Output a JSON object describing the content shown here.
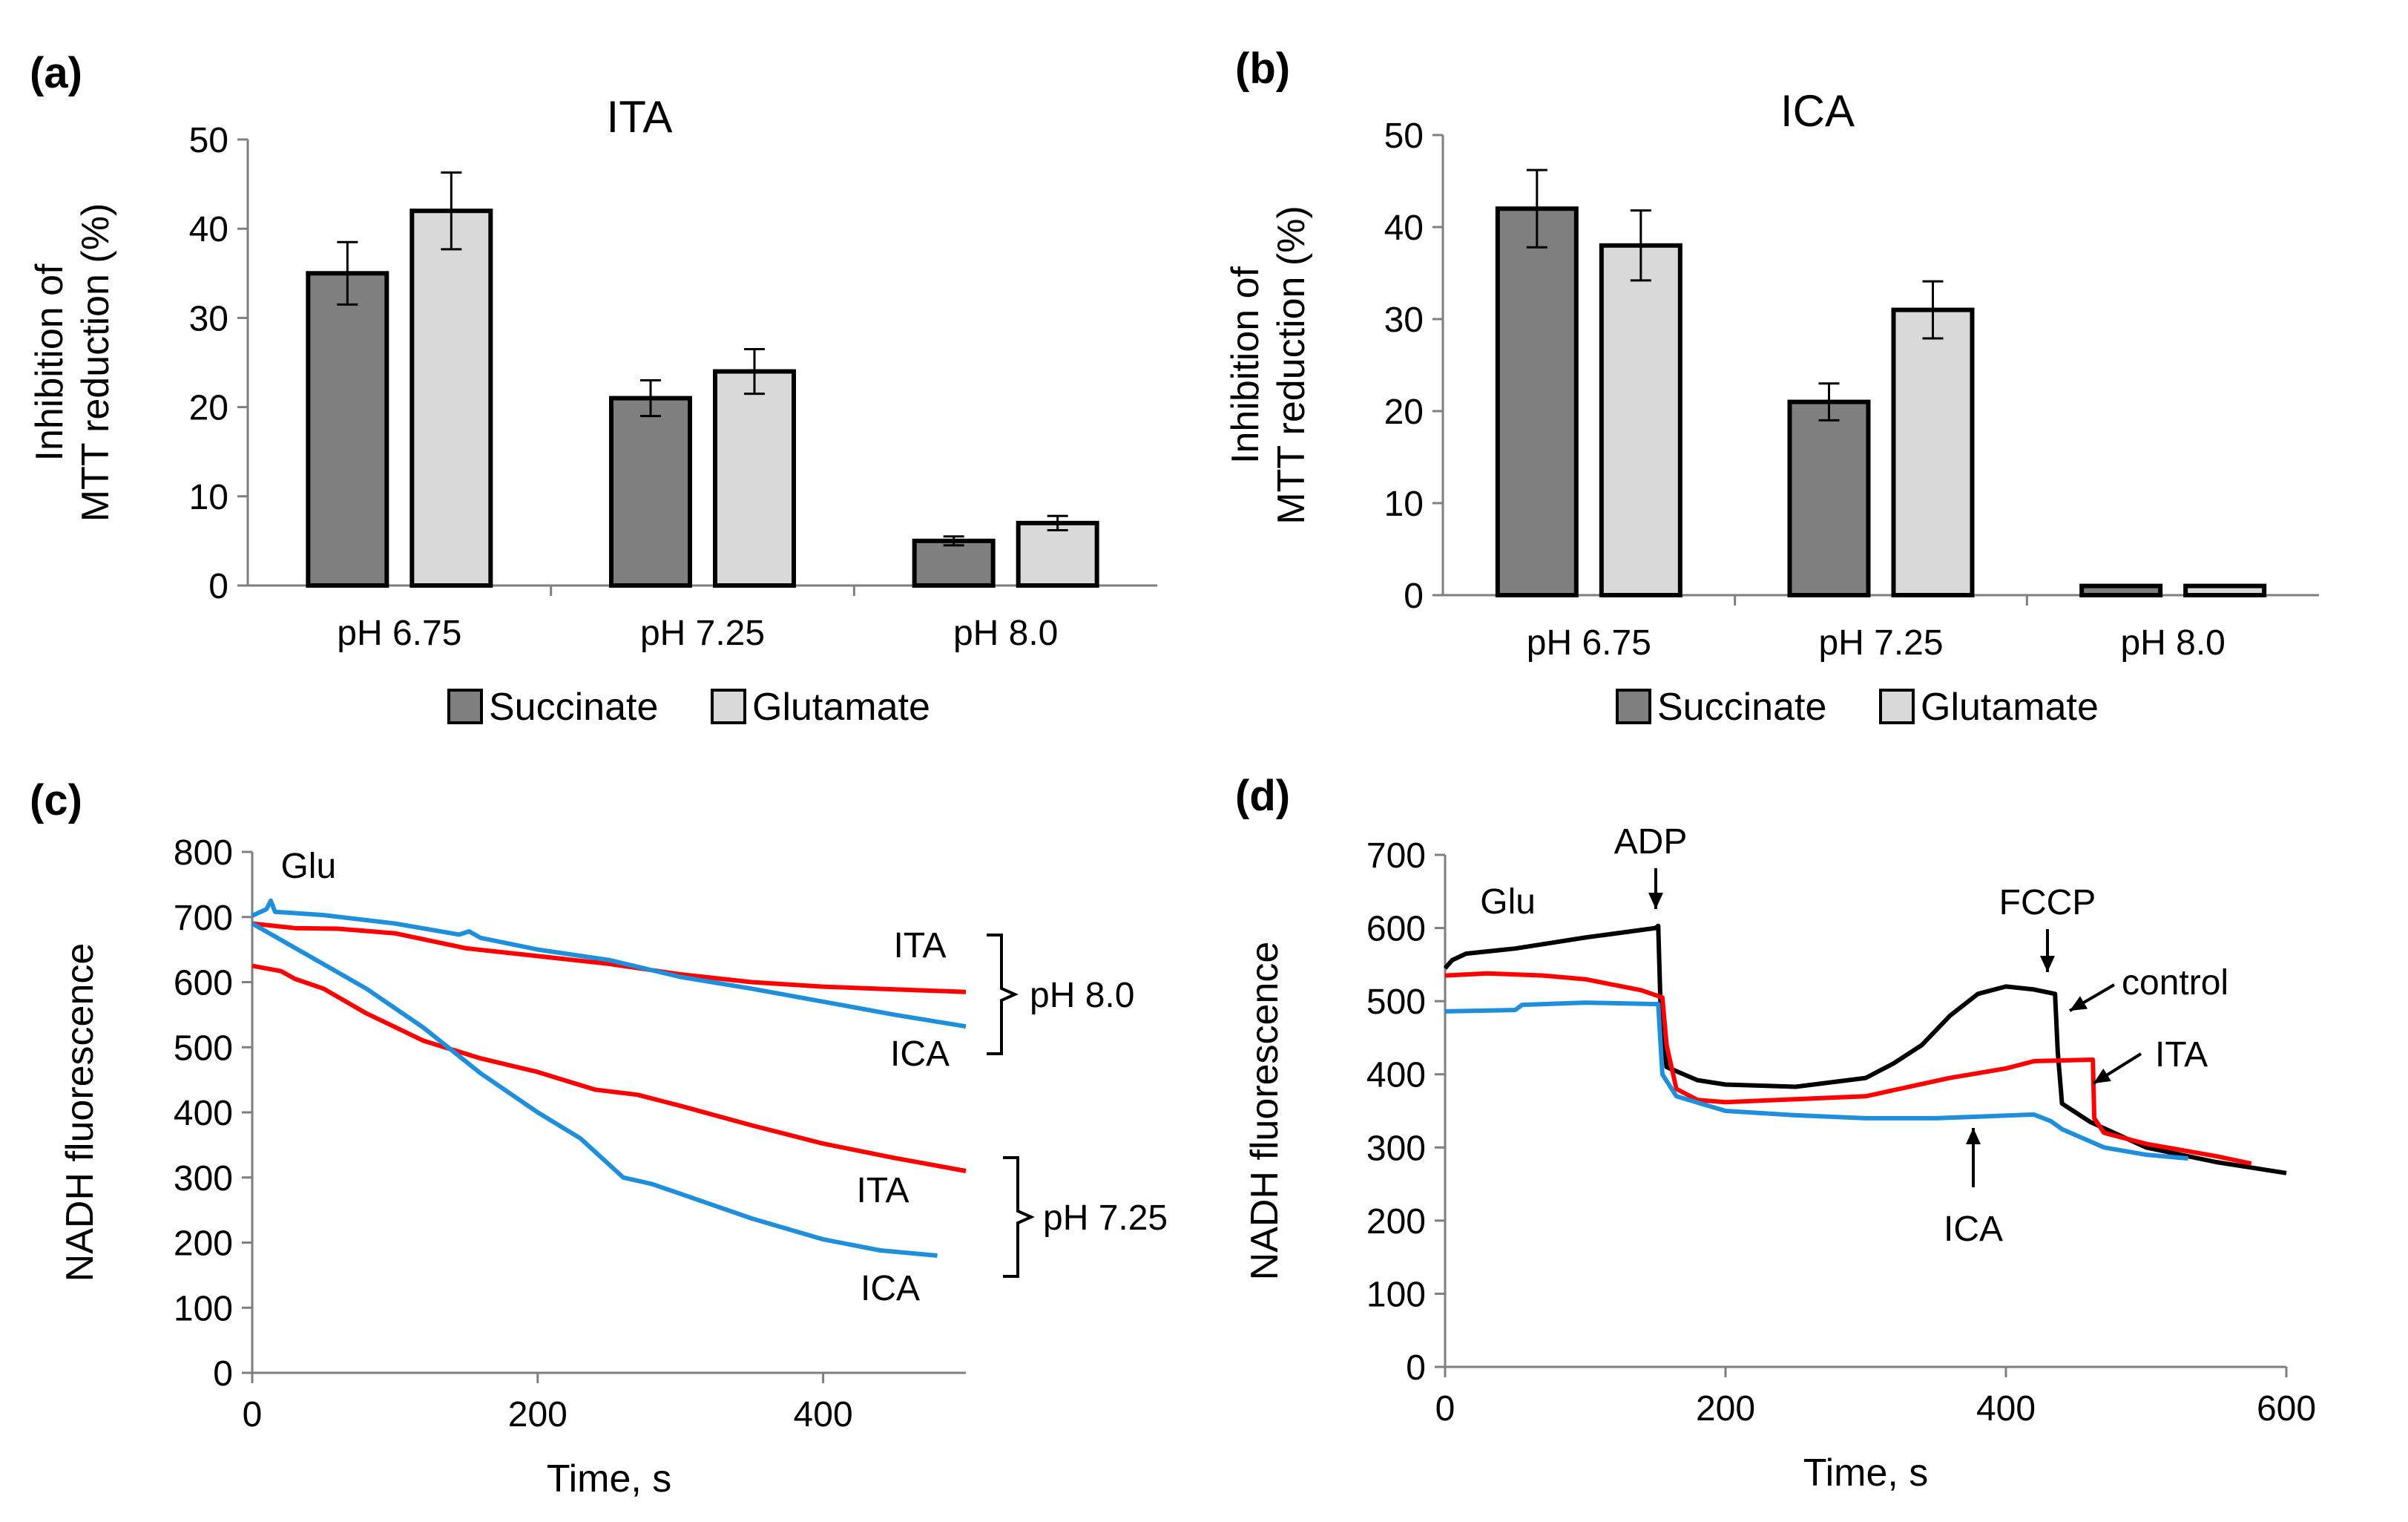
{
  "chart_data": [
    {
      "panel": "(a)",
      "type": "bar",
      "title": "ITA",
      "ylabel_lines": [
        "Inhibition of",
        "MTT reduction (%)"
      ],
      "ylim": [
        0,
        50
      ],
      "yticks": [
        0,
        10,
        20,
        30,
        40,
        50
      ],
      "categories": [
        "pH 6.75",
        "pH 7.25",
        "pH 8.0"
      ],
      "series": [
        {
          "name": "Succinate",
          "color": "#7f7f7f",
          "values": [
            35,
            21,
            5
          ],
          "errors": [
            3.5,
            2,
            0.5
          ]
        },
        {
          "name": "Glutamate",
          "color": "#d9d9d9",
          "values": [
            42,
            24,
            7
          ],
          "errors": [
            4.3,
            2.5,
            0.8
          ]
        }
      ],
      "legend": "bottom"
    },
    {
      "panel": "(b)",
      "type": "bar",
      "title": "ICA",
      "ylabel_lines": [
        "Inhibition of",
        "MTT reduction (%)"
      ],
      "ylim": [
        0,
        50
      ],
      "yticks": [
        0,
        10,
        20,
        30,
        40,
        50
      ],
      "categories": [
        "pH 6.75",
        "pH 7.25",
        "pH 8.0"
      ],
      "series": [
        {
          "name": "Succinate",
          "color": "#7f7f7f",
          "values": [
            42,
            21,
            1
          ],
          "errors": [
            4.2,
            2,
            0
          ]
        },
        {
          "name": "Glutamate",
          "color": "#d9d9d9",
          "values": [
            38,
            31,
            1
          ],
          "errors": [
            3.8,
            3.1,
            0
          ]
        }
      ],
      "legend": "bottom"
    },
    {
      "panel": "(c)",
      "type": "line",
      "xlabel": "Time, s",
      "ylabel": "NADH fluorescence",
      "xlim": [
        0,
        500
      ],
      "ylim": [
        0,
        800
      ],
      "xticks": [
        0,
        200,
        400
      ],
      "yticks": [
        0,
        100,
        200,
        300,
        400,
        500,
        600,
        700,
        800
      ],
      "series": [
        {
          "name": "ITA pH 8.0",
          "color": "#ff0000",
          "points": [
            [
              0,
              690
            ],
            [
              30,
              683
            ],
            [
              60,
              682
            ],
            [
              100,
              675
            ],
            [
              150,
              652
            ],
            [
              200,
              640
            ],
            [
              250,
              628
            ],
            [
              300,
              612
            ],
            [
              350,
              600
            ],
            [
              400,
              593
            ],
            [
              450,
              589
            ],
            [
              500,
              585
            ]
          ]
        },
        {
          "name": "ICA pH 8.0",
          "color": "#1f8fdc",
          "points": [
            [
              0,
              702
            ],
            [
              10,
              712
            ],
            [
              13,
              725
            ],
            [
              16,
              708
            ],
            [
              50,
              703
            ],
            [
              100,
              690
            ],
            [
              145,
              673
            ],
            [
              152,
              678
            ],
            [
              160,
              668
            ],
            [
              200,
              650
            ],
            [
              250,
              634
            ],
            [
              300,
              608
            ],
            [
              350,
              590
            ],
            [
              400,
              570
            ],
            [
              450,
              550
            ],
            [
              500,
              532
            ]
          ]
        },
        {
          "name": "ITA pH 7.25",
          "color": "#ff0000",
          "points": [
            [
              0,
              625
            ],
            [
              20,
              617
            ],
            [
              30,
              605
            ],
            [
              50,
              590
            ],
            [
              80,
              552
            ],
            [
              120,
              510
            ],
            [
              160,
              483
            ],
            [
              200,
              462
            ],
            [
              240,
              435
            ],
            [
              270,
              427
            ],
            [
              300,
              410
            ],
            [
              350,
              380
            ],
            [
              400,
              352
            ],
            [
              450,
              330
            ],
            [
              500,
              310
            ]
          ]
        },
        {
          "name": "ICA pH 7.25",
          "color": "#1f8fdc",
          "points": [
            [
              0,
              690
            ],
            [
              40,
              640
            ],
            [
              80,
              590
            ],
            [
              120,
              530
            ],
            [
              160,
              460
            ],
            [
              200,
              400
            ],
            [
              230,
              360
            ],
            [
              260,
              300
            ],
            [
              280,
              290
            ],
            [
              300,
              275
            ],
            [
              350,
              237
            ],
            [
              400,
              205
            ],
            [
              440,
              188
            ],
            [
              480,
              180
            ]
          ]
        }
      ],
      "annotations": [
        {
          "text": "Glu",
          "x": 20,
          "y": 760
        },
        {
          "text": "ITA",
          "group": "pH 8.0"
        },
        {
          "text": "ICA",
          "group": "pH 8.0"
        },
        {
          "text": "pH 8.0",
          "brace": true
        },
        {
          "text": "ITA",
          "group": "pH 7.25"
        },
        {
          "text": "ICA",
          "group": "pH 7.25"
        },
        {
          "text": "pH 7.25",
          "brace": true
        }
      ]
    },
    {
      "panel": "(d)",
      "type": "line",
      "xlabel": "Time, s",
      "ylabel": "NADH fluorescence",
      "xlim": [
        0,
        600
      ],
      "ylim": [
        0,
        700
      ],
      "xticks": [
        0,
        200,
        400,
        600
      ],
      "yticks": [
        0,
        100,
        200,
        300,
        400,
        500,
        600,
        700
      ],
      "series": [
        {
          "name": "control",
          "color": "#000000",
          "points": [
            [
              0,
              545
            ],
            [
              5,
              556
            ],
            [
              15,
              565
            ],
            [
              50,
              572
            ],
            [
              100,
              587
            ],
            [
              150,
              600
            ],
            [
              152,
              603
            ],
            [
              154,
              470
            ],
            [
              158,
              410
            ],
            [
              180,
              392
            ],
            [
              200,
              386
            ],
            [
              250,
              383
            ],
            [
              300,
              395
            ],
            [
              320,
              415
            ],
            [
              340,
              440
            ],
            [
              360,
              480
            ],
            [
              380,
              510
            ],
            [
              400,
              520
            ],
            [
              420,
              516
            ],
            [
              435,
              510
            ],
            [
              437,
              430
            ],
            [
              440,
              360
            ],
            [
              460,
              335
            ],
            [
              500,
              300
            ],
            [
              550,
              280
            ],
            [
              600,
              265
            ]
          ]
        },
        {
          "name": "ITA",
          "color": "#ff0000",
          "points": [
            [
              0,
              535
            ],
            [
              30,
              538
            ],
            [
              70,
              535
            ],
            [
              100,
              530
            ],
            [
              140,
              515
            ],
            [
              155,
              505
            ],
            [
              158,
              440
            ],
            [
              165,
              380
            ],
            [
              180,
              365
            ],
            [
              200,
              362
            ],
            [
              300,
              370
            ],
            [
              360,
              395
            ],
            [
              400,
              408
            ],
            [
              420,
              418
            ],
            [
              462,
              420
            ],
            [
              463,
              340
            ],
            [
              470,
              320
            ],
            [
              500,
              305
            ],
            [
              550,
              288
            ],
            [
              575,
              278
            ]
          ]
        },
        {
          "name": "ICA",
          "color": "#1f8fdc",
          "points": [
            [
              0,
              486
            ],
            [
              50,
              488
            ],
            [
              55,
              495
            ],
            [
              100,
              498
            ],
            [
              152,
              496
            ],
            [
              155,
              400
            ],
            [
              165,
              370
            ],
            [
              200,
              350
            ],
            [
              250,
              344
            ],
            [
              300,
              340
            ],
            [
              350,
              340
            ],
            [
              420,
              345
            ],
            [
              432,
              336
            ],
            [
              440,
              325
            ],
            [
              470,
              300
            ],
            [
              500,
              290
            ],
            [
              530,
              285
            ]
          ]
        }
      ],
      "annotations": [
        {
          "text": "Glu",
          "x": 25,
          "y": 620
        },
        {
          "text": "ADP",
          "arrow": "down",
          "x": 150,
          "y": 600
        },
        {
          "text": "FCCP",
          "arrow": "down",
          "x": 436,
          "y": 510
        },
        {
          "text": "control",
          "arrow": "left",
          "x": 436,
          "y": 505
        },
        {
          "text": "ITA",
          "arrow": "left",
          "x": 463,
          "y": 420
        },
        {
          "text": "ICA",
          "arrow": "up",
          "x": 380,
          "y": 340
        }
      ]
    }
  ]
}
